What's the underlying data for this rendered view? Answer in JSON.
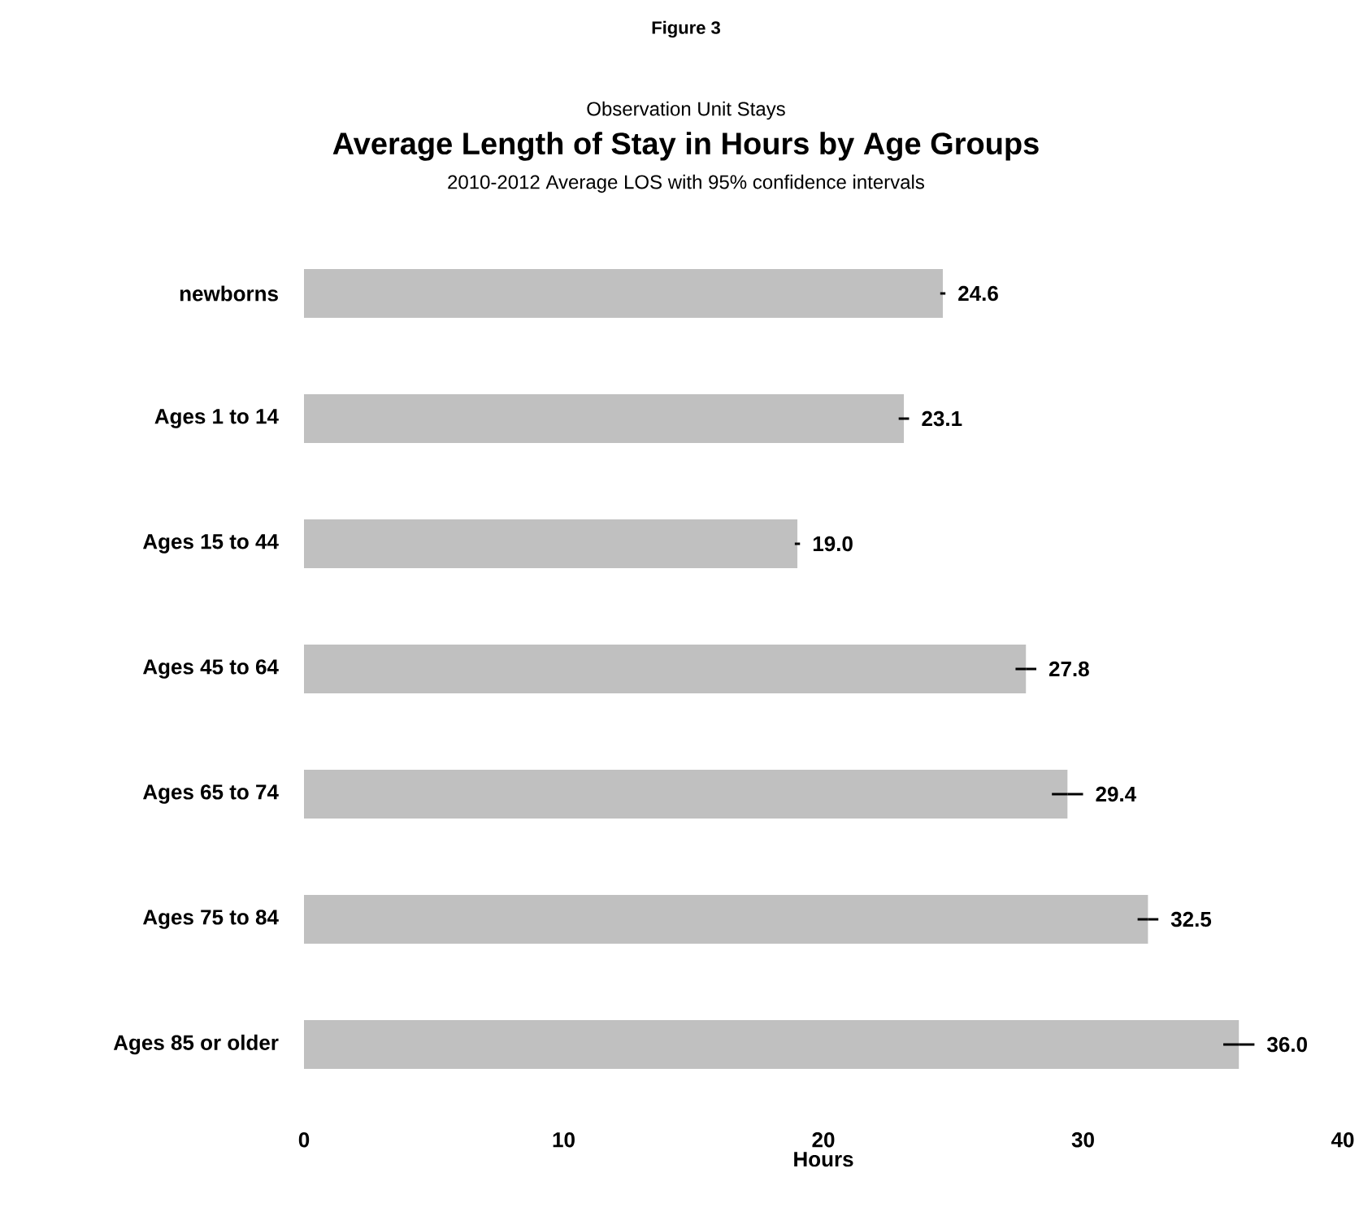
{
  "chart_data": {
    "type": "bar",
    "orientation": "horizontal",
    "title": "Average Length of Stay in Hours by Age Groups",
    "subtitle": "2010-2012 Average LOS with 95% confidence intervals",
    "annotations": [
      "Figure 3",
      "Observation Unit Stays"
    ],
    "xlabel": "Hours",
    "categories": [
      "newborns",
      "Ages 1 to 14",
      "Ages 15 to 44",
      "Ages 45 to 64",
      "Ages 65 to 74",
      "Ages 75 to 84",
      "Ages 85 or older"
    ],
    "values": [
      24.6,
      23.1,
      19.0,
      27.8,
      29.4,
      32.5,
      36.0
    ],
    "errors": [
      0.1,
      0.2,
      0.1,
      0.4,
      0.6,
      0.4,
      0.6
    ],
    "value_labels": [
      "24.6",
      "23.1",
      "19.0",
      "27.8",
      "29.4",
      "32.5",
      "36.0"
    ],
    "color": "#c0c0c0",
    "xlim": [
      0,
      40
    ],
    "xticks": [
      0,
      10,
      20,
      30,
      40
    ]
  }
}
